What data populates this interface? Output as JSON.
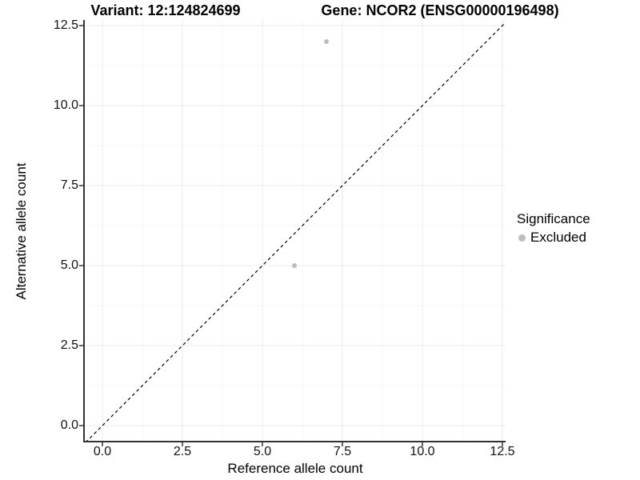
{
  "titles": {
    "variant": "Variant: 12:124824699",
    "gene": "Gene: NCOR2 (ENSG00000196498)"
  },
  "legend": {
    "title": "Significance",
    "items": [
      {
        "label": "Excluded",
        "color": "#bdbdbd"
      }
    ]
  },
  "chart_data": {
    "type": "scatter",
    "title_left": "Variant: 12:124824699",
    "title_right": "Gene: NCOR2 (ENSG00000196498)",
    "xlabel": "Reference allele count",
    "ylabel": "Alternative allele count",
    "xlim": [
      -0.6,
      12.6
    ],
    "ylim": [
      -0.525,
      12.675
    ],
    "x_ticks": {
      "values": [
        0,
        2.5,
        5,
        7.5,
        10,
        12.5
      ],
      "labels": [
        "0.0",
        "2.5",
        "5.0",
        "7.5",
        "10.0",
        "12.5"
      ]
    },
    "y_ticks": {
      "values": [
        0,
        2.5,
        5,
        7.5,
        10,
        12.5
      ],
      "labels": [
        "0.0",
        "2.5",
        "5.0",
        "7.5",
        "10.0",
        "12.5"
      ]
    },
    "x_minor": [
      1.25,
      3.75,
      6.25,
      8.75,
      11.25
    ],
    "y_minor": [
      1.25,
      3.75,
      6.25,
      8.75,
      11.25
    ],
    "grid": true,
    "legend_position": "right",
    "series": [
      {
        "name": "Excluded",
        "points": [
          {
            "x": 7,
            "y": 12
          },
          {
            "x": 6,
            "y": 5
          }
        ]
      }
    ],
    "identity_line": {
      "equation": "y = x",
      "style": "dashed",
      "color": "#000000"
    },
    "colors": {
      "point": "#bdbdbd",
      "grid_major": "#ebebeb",
      "grid_minor": "#f4f4f4",
      "axis_line": "#333333",
      "tick_mark": "#333333"
    }
  }
}
